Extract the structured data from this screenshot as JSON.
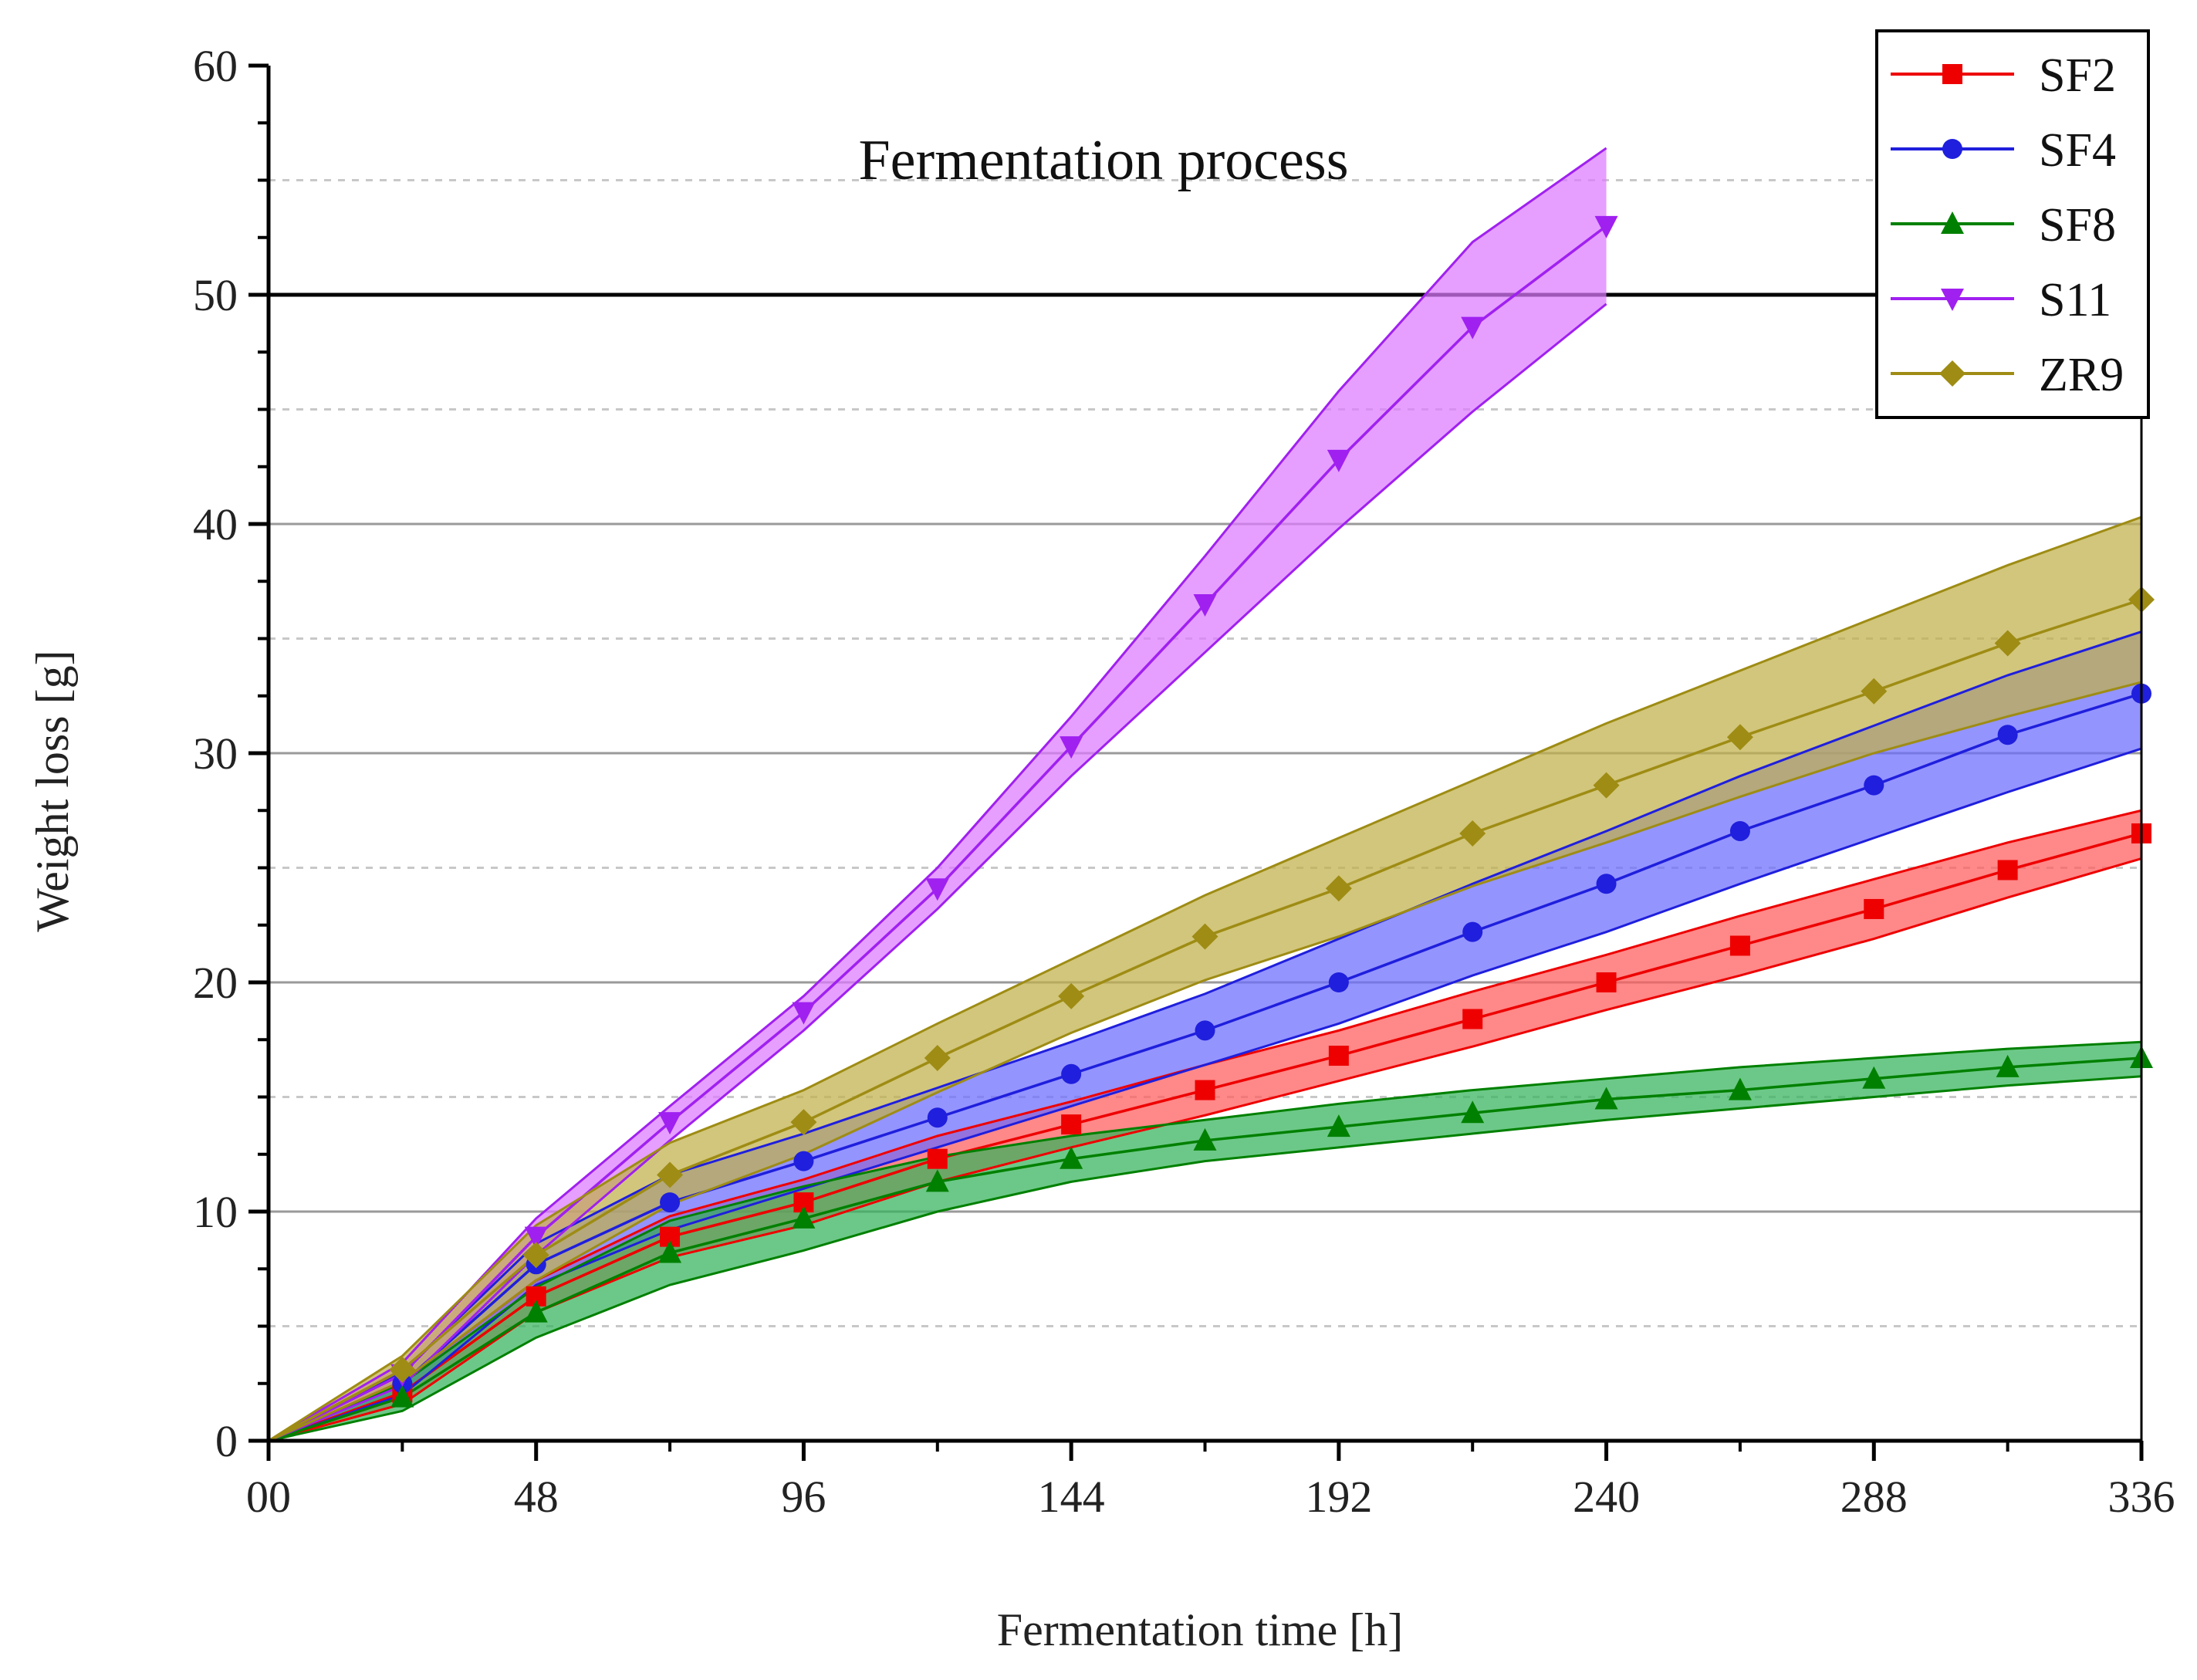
{
  "chart_data": {
    "type": "line",
    "title": "",
    "annotation": "Fermentation process",
    "xlabel": "Fermentation time [h]",
    "ylabel": "Weight loss [g]",
    "xlim": [
      0,
      336
    ],
    "ylim": [
      0,
      60
    ],
    "x_ticks": [
      0,
      48,
      96,
      144,
      192,
      240,
      288,
      336
    ],
    "x_tick_labels": [
      "00",
      "48",
      "96",
      "144",
      "192",
      "240",
      "288",
      "336"
    ],
    "y_ticks": [
      0,
      10,
      20,
      30,
      40,
      50,
      60
    ],
    "y_tick_labels": [
      "0",
      "10",
      "20",
      "30",
      "40",
      "50",
      "60"
    ],
    "y_minor_gridlines": [
      5,
      15,
      25,
      35,
      45,
      55
    ],
    "reference_line_y": 50,
    "grid": true,
    "legend_position": "top-right",
    "series": [
      {
        "name": "SF2",
        "color": "#ee0000",
        "band_color": "#ff5a5a",
        "marker": "square",
        "x": [
          0,
          24,
          48,
          72,
          96,
          120,
          144,
          168,
          192,
          216,
          240,
          264,
          288,
          312,
          336
        ],
        "values": [
          0,
          2.1,
          6.3,
          8.9,
          10.4,
          12.3,
          13.8,
          15.3,
          16.8,
          18.4,
          20.0,
          21.6,
          23.2,
          24.9,
          26.5
        ],
        "upper": [
          0,
          2.6,
          7.0,
          9.8,
          11.4,
          13.3,
          14.8,
          16.4,
          17.9,
          19.6,
          21.2,
          22.9,
          24.5,
          26.1,
          27.5
        ],
        "lower": [
          0,
          1.6,
          5.6,
          8.0,
          9.4,
          11.3,
          12.8,
          14.2,
          15.7,
          17.2,
          18.8,
          20.3,
          21.9,
          23.7,
          25.4
        ]
      },
      {
        "name": "SF4",
        "color": "#1f1fdd",
        "band_color": "#6b6bff",
        "marker": "circle",
        "x": [
          0,
          24,
          48,
          72,
          96,
          120,
          144,
          168,
          192,
          216,
          240,
          264,
          288,
          312,
          336
        ],
        "values": [
          0,
          2.5,
          7.7,
          10.4,
          12.2,
          14.1,
          16.0,
          17.9,
          20.0,
          22.2,
          24.3,
          26.6,
          28.6,
          30.8,
          32.6
        ],
        "upper": [
          0,
          3.0,
          8.6,
          11.6,
          13.4,
          15.4,
          17.4,
          19.5,
          21.9,
          24.3,
          26.6,
          29.0,
          31.2,
          33.4,
          35.3
        ],
        "lower": [
          0,
          2.0,
          6.8,
          9.2,
          11.0,
          12.8,
          14.6,
          16.4,
          18.2,
          20.3,
          22.2,
          24.3,
          26.3,
          28.3,
          30.2
        ]
      },
      {
        "name": "SF8",
        "color": "#008000",
        "band_color": "#33b35a",
        "marker": "triangle-up",
        "x": [
          0,
          24,
          48,
          72,
          96,
          120,
          144,
          168,
          192,
          216,
          240,
          264,
          288,
          312,
          336
        ],
        "values": [
          0,
          1.9,
          5.6,
          8.2,
          9.7,
          11.3,
          12.3,
          13.1,
          13.7,
          14.3,
          14.9,
          15.3,
          15.8,
          16.3,
          16.7
        ],
        "upper": [
          0,
          2.5,
          6.7,
          9.6,
          11.1,
          12.4,
          13.3,
          14.0,
          14.7,
          15.3,
          15.8,
          16.3,
          16.7,
          17.1,
          17.4
        ],
        "lower": [
          0,
          1.3,
          4.5,
          6.8,
          8.3,
          10.0,
          11.3,
          12.2,
          12.8,
          13.4,
          14.0,
          14.5,
          15.0,
          15.5,
          15.9
        ]
      },
      {
        "name": "S11",
        "color": "#a020f0",
        "band_color": "#dc7aff",
        "marker": "triangle-down",
        "x": [
          0,
          24,
          48,
          72,
          96,
          120,
          144,
          168,
          192,
          216,
          240
        ],
        "values": [
          0,
          2.9,
          8.9,
          13.9,
          18.7,
          24.1,
          30.3,
          36.5,
          42.8,
          48.6,
          53.0
        ],
        "upper": [
          0,
          3.4,
          9.7,
          14.6,
          19.4,
          25.0,
          31.6,
          38.6,
          45.8,
          52.3,
          56.4
        ],
        "lower": [
          0,
          2.4,
          8.1,
          13.1,
          17.9,
          23.2,
          29.0,
          34.4,
          39.8,
          44.9,
          49.6
        ]
      },
      {
        "name": "ZR9",
        "color": "#9e8c14",
        "band_color": "#c0b04a",
        "marker": "diamond",
        "x": [
          0,
          24,
          48,
          72,
          96,
          120,
          144,
          168,
          192,
          216,
          240,
          264,
          288,
          312,
          336
        ],
        "values": [
          0,
          3.1,
          8.1,
          11.6,
          13.9,
          16.7,
          19.4,
          22.0,
          24.1,
          26.5,
          28.6,
          30.7,
          32.7,
          34.8,
          36.7
        ],
        "upper": [
          0,
          3.7,
          9.4,
          13.0,
          15.3,
          18.2,
          21.0,
          23.8,
          26.3,
          28.8,
          31.3,
          33.6,
          35.9,
          38.2,
          40.3
        ],
        "lower": [
          0,
          2.6,
          7.0,
          10.3,
          12.5,
          15.2,
          17.8,
          20.1,
          22.0,
          24.2,
          26.1,
          28.1,
          30.0,
          31.6,
          33.1
        ]
      }
    ]
  }
}
